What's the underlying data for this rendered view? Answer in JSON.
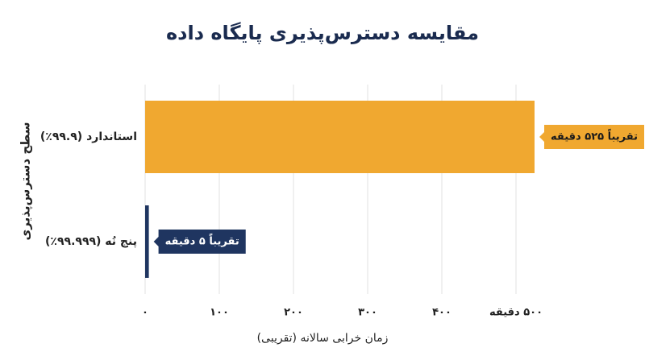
{
  "chart_data": {
    "type": "barh",
    "title": "مقایسه دسترس‌پذیری پایگاه داده",
    "xlabel": "زمان خرابی سالانه (تقریبی)",
    "ylabel": "سطح دسترس‌پذیری",
    "categories": [
      "استاندارد (۹۹.۹٪)",
      "پنج نُه (۹۹.۹۹۹٪)"
    ],
    "values": [
      525,
      5
    ],
    "value_labels": [
      "تقریباً ۵۲۵ دقیقه",
      "تقریباً ۵ دقیقه"
    ],
    "colors": [
      "#f0a830",
      "#1f3560"
    ],
    "xlim": [
      0,
      600
    ],
    "xticks": [
      {
        "value": 0,
        "label": "۰"
      },
      {
        "value": 100,
        "label": "۱۰۰"
      },
      {
        "value": 200,
        "label": "۲۰۰"
      },
      {
        "value": 300,
        "label": "۳۰۰"
      },
      {
        "value": 400,
        "label": "۴۰۰"
      },
      {
        "value": 500,
        "label": "۵۰۰ دقیقه"
      }
    ],
    "grid": true
  }
}
